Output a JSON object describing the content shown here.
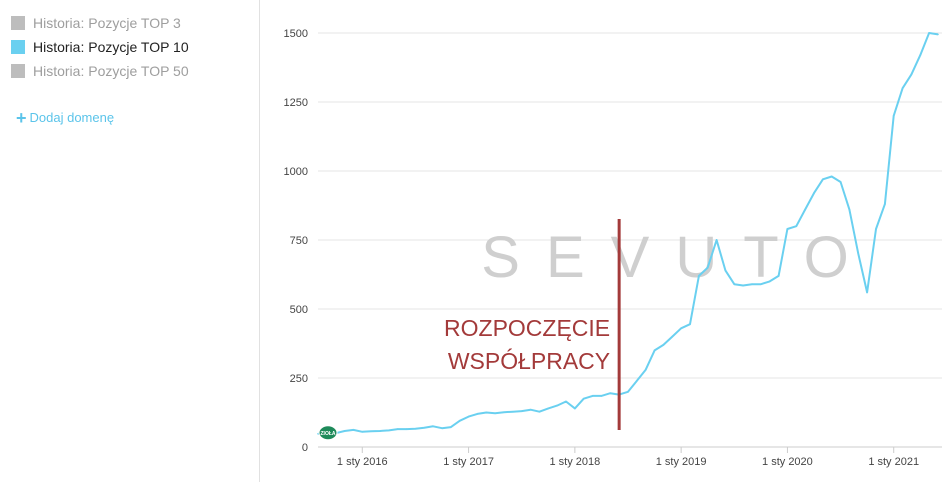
{
  "legend": {
    "items": [
      {
        "label": "Historia: Pozycje TOP 3",
        "color": "#bdbdbd",
        "active": false
      },
      {
        "label": "Historia: Pozycje TOP 10",
        "color": "#6ad0f0",
        "active": true
      },
      {
        "label": "Historia: Pozycje TOP 50",
        "color": "#bdbdbd",
        "active": false
      }
    ],
    "add_domain_label": "Dodaj domenę"
  },
  "colors": {
    "series": "#6ad0f0",
    "grid": "#e6e6e6",
    "axis_text": "#444444",
    "marker": "#a33a3a",
    "marker_text": "#a33a3a",
    "watermark": "#cfcfcf",
    "start_badge": "#1e8a5a"
  },
  "annotation": {
    "line1": "ROZPOCZĘCIE",
    "line2": "WSPÓŁPRACY",
    "x": "2018-06"
  },
  "watermark": {
    "text": "SEVUTO"
  },
  "start_badge": {
    "text": "ZIOŁA"
  },
  "chart_data": {
    "type": "line",
    "title": "",
    "xlabel": "",
    "ylabel": "",
    "ylim": [
      0,
      1500
    ],
    "yticks": [
      0,
      250,
      500,
      750,
      1000,
      1250,
      1500
    ],
    "grid": true,
    "xticks": [
      {
        "date": "2016-01",
        "label": "1 sty 2016"
      },
      {
        "date": "2017-01",
        "label": "1 sty 2017"
      },
      {
        "date": "2018-01",
        "label": "1 sty 2018"
      },
      {
        "date": "2019-01",
        "label": "1 sty 2019"
      },
      {
        "date": "2020-01",
        "label": "1 sty 2020"
      },
      {
        "date": "2021-01",
        "label": "1 sty 2021"
      }
    ],
    "xrange": [
      "2015-08",
      "2021-06"
    ],
    "series": [
      {
        "name": "Historia: Pozycje TOP 10",
        "points": [
          [
            "2015-08",
            48
          ],
          [
            "2015-09",
            47
          ],
          [
            "2015-10",
            50
          ],
          [
            "2015-11",
            58
          ],
          [
            "2015-12",
            62
          ],
          [
            "2016-01",
            55
          ],
          [
            "2016-02",
            57
          ],
          [
            "2016-03",
            58
          ],
          [
            "2016-04",
            60
          ],
          [
            "2016-05",
            65
          ],
          [
            "2016-06",
            65
          ],
          [
            "2016-07",
            66
          ],
          [
            "2016-08",
            70
          ],
          [
            "2016-09",
            75
          ],
          [
            "2016-10",
            68
          ],
          [
            "2016-11",
            72
          ],
          [
            "2016-12",
            95
          ],
          [
            "2017-01",
            110
          ],
          [
            "2017-02",
            120
          ],
          [
            "2017-03",
            125
          ],
          [
            "2017-04",
            122
          ],
          [
            "2017-05",
            126
          ],
          [
            "2017-06",
            128
          ],
          [
            "2017-07",
            130
          ],
          [
            "2017-08",
            135
          ],
          [
            "2017-09",
            128
          ],
          [
            "2017-10",
            140
          ],
          [
            "2017-11",
            150
          ],
          [
            "2017-12",
            165
          ],
          [
            "2018-01",
            140
          ],
          [
            "2018-02",
            175
          ],
          [
            "2018-03",
            185
          ],
          [
            "2018-04",
            185
          ],
          [
            "2018-05",
            195
          ],
          [
            "2018-06",
            190
          ],
          [
            "2018-07",
            200
          ],
          [
            "2018-08",
            240
          ],
          [
            "2018-09",
            280
          ],
          [
            "2018-10",
            350
          ],
          [
            "2018-11",
            370
          ],
          [
            "2018-12",
            400
          ],
          [
            "2019-01",
            430
          ],
          [
            "2019-02",
            445
          ],
          [
            "2019-03",
            620
          ],
          [
            "2019-04",
            650
          ],
          [
            "2019-05",
            750
          ],
          [
            "2019-06",
            640
          ],
          [
            "2019-07",
            590
          ],
          [
            "2019-08",
            585
          ],
          [
            "2019-09",
            590
          ],
          [
            "2019-10",
            590
          ],
          [
            "2019-11",
            600
          ],
          [
            "2019-12",
            620
          ],
          [
            "2020-01",
            790
          ],
          [
            "2020-02",
            800
          ],
          [
            "2020-03",
            860
          ],
          [
            "2020-04",
            920
          ],
          [
            "2020-05",
            970
          ],
          [
            "2020-06",
            980
          ],
          [
            "2020-07",
            960
          ],
          [
            "2020-08",
            860
          ],
          [
            "2020-09",
            700
          ],
          [
            "2020-10",
            560
          ],
          [
            "2020-11",
            790
          ],
          [
            "2020-12",
            880
          ],
          [
            "2021-01",
            1200
          ],
          [
            "2021-02",
            1300
          ],
          [
            "2021-03",
            1350
          ],
          [
            "2021-04",
            1420
          ],
          [
            "2021-05",
            1500
          ],
          [
            "2021-06",
            1495
          ]
        ]
      }
    ]
  }
}
